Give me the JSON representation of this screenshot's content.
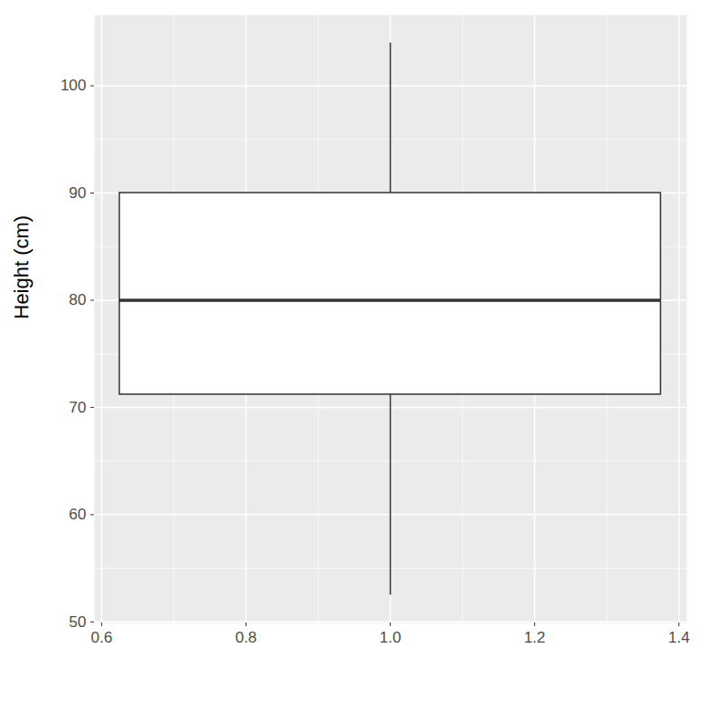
{
  "chart_data": {
    "type": "box",
    "y_label": "Height (cm)",
    "x": [
      1
    ],
    "box_width": 0.75,
    "whisker_low": [
      52.5
    ],
    "q1": [
      71.2
    ],
    "median": [
      80
    ],
    "q3": [
      90
    ],
    "whisker_high": [
      104
    ],
    "color": "#ffffff",
    "xlim": [
      0.59,
      1.411
    ],
    "xticks": [
      0.6,
      0.8,
      {
        "value": 1,
        "label": "1.0"
      },
      1.2,
      1.4
    ],
    "ylim": [
      49.9,
      106.6
    ],
    "yticks": [
      50,
      60,
      70,
      80,
      90,
      100
    ],
    "grid": true
  }
}
